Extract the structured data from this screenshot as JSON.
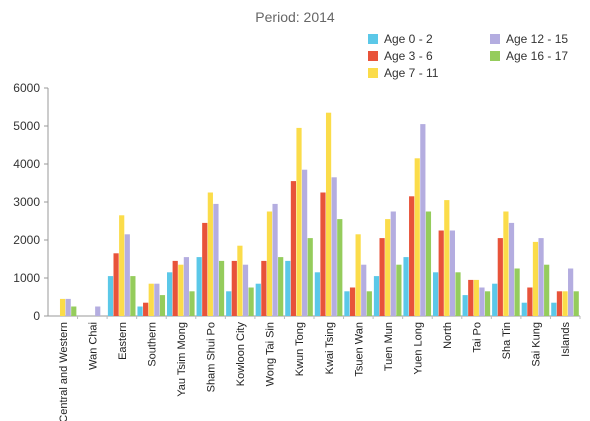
{
  "chart_data": {
    "type": "bar",
    "title": "Period: 2014",
    "xlabel": "",
    "ylabel": "",
    "ylim": [
      0,
      6000
    ],
    "yticks": [
      0,
      1000,
      2000,
      3000,
      4000,
      5000,
      6000
    ],
    "grid": false,
    "legend_position": "top-right",
    "categories": [
      "Central and Western",
      "Wan Chai",
      "Eastern",
      "Southern",
      "Yau Tsim Mong",
      "Sham Shui Po",
      "Kowloon City",
      "Wong Tai Sin",
      "Kwun Tong",
      "Kwai Tsing",
      "Tsuen Wan",
      "Tuen Mun",
      "Yuen Long",
      "North",
      "Tai Po",
      "Sha Tin",
      "Sai Kung",
      "Islands"
    ],
    "series": [
      {
        "name": "Age 0 - 2",
        "color": "#5bc8e8",
        "values": [
          0,
          0,
          1050,
          250,
          1150,
          1550,
          650,
          850,
          1450,
          1150,
          650,
          1050,
          1550,
          1150,
          550,
          850,
          350,
          350
        ]
      },
      {
        "name": "Age 3 - 6",
        "color": "#e8533a",
        "values": [
          0,
          0,
          1650,
          350,
          1450,
          2450,
          1450,
          1450,
          3550,
          3250,
          750,
          2050,
          3150,
          2250,
          950,
          2050,
          750,
          650
        ]
      },
      {
        "name": "Age 7 - 11",
        "color": "#fbdc4a",
        "values": [
          450,
          0,
          2650,
          850,
          1350,
          3250,
          1850,
          2750,
          4950,
          5350,
          2150,
          2550,
          4150,
          3050,
          950,
          2750,
          1950,
          650
        ]
      },
      {
        "name": "Age 12 - 15",
        "color": "#b4ade0",
        "values": [
          450,
          250,
          2150,
          850,
          1550,
          2950,
          1350,
          2950,
          3850,
          3650,
          1350,
          2750,
          5050,
          2250,
          750,
          2450,
          2050,
          1250
        ]
      },
      {
        "name": "Age 16 - 17",
        "color": "#95cc5c",
        "values": [
          250,
          0,
          1050,
          550,
          650,
          1450,
          750,
          1550,
          2050,
          2550,
          650,
          1350,
          2750,
          1150,
          650,
          1250,
          1350,
          650
        ]
      }
    ]
  }
}
